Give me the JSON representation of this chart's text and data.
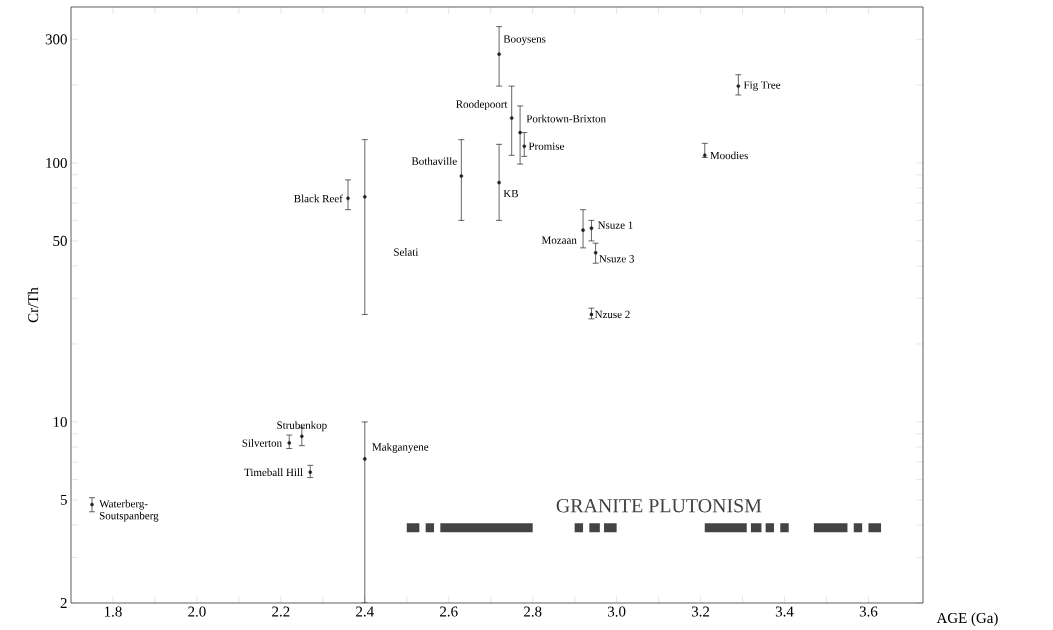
{
  "chart_data": {
    "type": "scatter",
    "xlabel": "AGE (Ga)",
    "ylabel": "Cr/Th",
    "log": "y",
    "marker": "circle",
    "xlim": [
      1.7,
      3.73
    ],
    "ylim": [
      2,
      400
    ],
    "xticks": [
      1.8,
      {
        "value": 1.9,
        "label": null
      },
      {
        "value": 2.0,
        "label": "2.0"
      },
      {
        "value": 2.1,
        "label": null
      },
      2.2,
      {
        "value": 2.3,
        "label": null
      },
      2.4,
      {
        "value": 2.5,
        "label": null
      },
      2.6,
      {
        "value": 2.7,
        "label": null
      },
      2.8,
      {
        "value": 2.9,
        "label": null
      },
      {
        "value": 3.0,
        "label": "3.0"
      },
      {
        "value": 3.1,
        "label": null
      },
      3.2,
      {
        "value": 3.3,
        "label": null
      },
      3.4,
      {
        "value": 3.5,
        "label": null
      },
      3.6
    ],
    "yticks": [
      2,
      {
        "value": 3,
        "label": null
      },
      {
        "value": 4,
        "label": null
      },
      5,
      {
        "value": 6,
        "label": null
      },
      {
        "value": 7,
        "label": null
      },
      {
        "value": 8,
        "label": null
      },
      {
        "value": 9,
        "label": null
      },
      10,
      {
        "value": 20,
        "label": null
      },
      {
        "value": 30,
        "label": null
      },
      {
        "value": 40,
        "label": null
      },
      50,
      {
        "value": 60,
        "label": null
      },
      {
        "value": 70,
        "label": null
      },
      {
        "value": 80,
        "label": null
      },
      {
        "value": 90,
        "label": null
      },
      100,
      {
        "value": 200,
        "label": null
      },
      300
    ],
    "x": [
      1.75,
      2.22,
      2.25,
      2.27,
      2.4,
      2.36,
      2.4,
      2.63,
      2.72,
      2.72,
      2.75,
      2.77,
      2.78,
      2.92,
      2.94,
      2.95,
      2.94,
      3.29,
      3.21
    ],
    "series": [
      {
        "color": "#222222",
        "values": [
          4.8,
          8.3,
          8.8,
          6.4,
          7.2,
          73,
          74,
          89,
          84,
          263,
          149,
          131,
          116,
          55,
          56,
          45,
          26,
          198,
          107
        ],
        "errors": [
          [
            4.5,
            5.1
          ],
          [
            7.9,
            8.9
          ],
          [
            8.1,
            9.5
          ],
          [
            6.1,
            6.8
          ],
          [
            2,
            10
          ],
          [
            66,
            86
          ],
          [
            26,
            123
          ],
          [
            60,
            123
          ],
          [
            60,
            118
          ],
          [
            198,
            336
          ],
          [
            107,
            198
          ],
          [
            99,
            166
          ],
          [
            106,
            131
          ],
          [
            47,
            66
          ],
          [
            50,
            60
          ],
          [
            41,
            49
          ],
          [
            25,
            27.5
          ],
          [
            183,
            219
          ],
          [
            105,
            119
          ]
        ]
      },
      {
        "type": "line",
        "marker": "none",
        "color": "#444444",
        "x": [
          2.5,
          2.53,
          2.54,
          2.545,
          2.565,
          2.57,
          2.58,
          2.8,
          2.85,
          2.9,
          2.92,
          2.93,
          2.935,
          2.96,
          2.965,
          2.97,
          3.0,
          3.1,
          3.21,
          3.31,
          3.315,
          3.32,
          3.345,
          3.35,
          3.355,
          3.375,
          3.38,
          3.39,
          3.41,
          3.44,
          3.47,
          3.55,
          3.56,
          3.565,
          3.585,
          3.59,
          3.6,
          3.63
        ],
        "values": [
          3.9,
          3.9,
          null,
          3.9,
          3.9,
          null,
          3.9,
          3.9,
          null,
          3.9,
          3.9,
          null,
          3.9,
          3.9,
          null,
          3.9,
          3.9,
          null,
          3.9,
          3.9,
          null,
          3.9,
          3.9,
          null,
          3.9,
          3.9,
          null,
          3.9,
          3.9,
          null,
          3.9,
          3.9,
          null,
          3.9,
          3.9,
          null,
          3.9,
          3.9
        ]
      }
    ],
    "annotations": [
      {
        "text": "Waterberg-Soutspanberg",
        "x": 1.75,
        "y": 4.8
      },
      {
        "text": "Silverton",
        "x": 2.22,
        "y": 8.3
      },
      {
        "text": "Strubenkop",
        "x": 2.25,
        "y": 8.8
      },
      {
        "text": "Timeball Hill",
        "x": 2.27,
        "y": 6.4
      },
      {
        "text": "Makganyene",
        "x": 2.4,
        "y": 7.2
      },
      {
        "text": "Black Reef",
        "x": 2.36,
        "y": 73
      },
      "Selati",
      {
        "text": "Bothaville",
        "x": 2.63,
        "y": 89
      },
      {
        "text": "KB",
        "x": 2.72,
        "y": 84
      },
      {
        "text": "Booysens",
        "x": 2.72,
        "y": 263
      },
      {
        "text": "Roodepoort",
        "x": 2.75,
        "y": 149
      },
      {
        "text": "Porktown-Brixton",
        "x": 2.77,
        "y": 131
      },
      {
        "text": "Promise",
        "x": 2.78,
        "y": 116
      },
      {
        "text": "Mozaan",
        "x": 2.92,
        "y": 55
      },
      {
        "text": "Nsuze 1",
        "x": 2.94,
        "y": 56
      },
      {
        "text": "Nsuze 3",
        "x": 2.95,
        "y": 45
      },
      {
        "text": "Nzuse 2",
        "x": 2.94,
        "y": 26
      },
      {
        "text": "Fig Tree",
        "x": 3.29,
        "y": 198
      },
      {
        "text": "Moodies",
        "x": 3.21,
        "y": 107
      },
      "GRANITE PLUTONISM"
    ]
  }
}
